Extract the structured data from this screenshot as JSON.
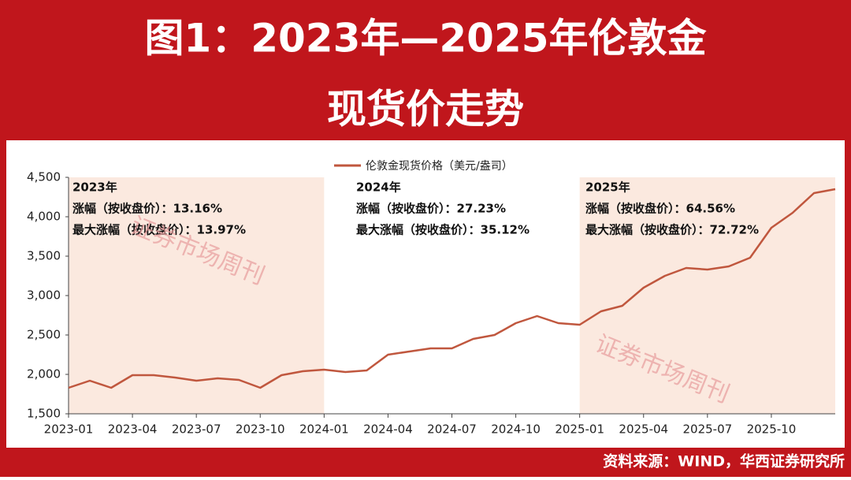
{
  "chart_data": {
    "type": "line",
    "title": [
      "图1：2023年—2025年伦敦金",
      "现货价走势"
    ],
    "x": [
      "2023-01",
      "2023-02",
      "2023-03",
      "2023-04",
      "2023-05",
      "2023-06",
      "2023-07",
      "2023-08",
      "2023-09",
      "2023-10",
      "2023-11",
      "2023-12",
      "2024-01",
      "2024-02",
      "2024-03",
      "2024-04",
      "2024-05",
      "2024-06",
      "2024-07",
      "2024-08",
      "2024-09",
      "2024-10",
      "2024-11",
      "2024-12",
      "2025-01",
      "2025-02",
      "2025-03",
      "2025-04",
      "2025-05",
      "2025-06",
      "2025-07",
      "2025-08",
      "2025-09",
      "2025-10",
      "2025-11",
      "2025-12",
      "2026-01"
    ],
    "series": [
      {
        "name": "伦敦金现货价格（美元/盎司）",
        "color": "#c0573e",
        "values": [
          1830,
          1920,
          1830,
          1990,
          1990,
          1960,
          1920,
          1950,
          1930,
          1830,
          1990,
          2040,
          2060,
          2030,
          2050,
          2250,
          2290,
          2330,
          2330,
          2450,
          2500,
          2650,
          2740,
          2650,
          2630,
          2800,
          2870,
          3100,
          3250,
          3350,
          3330,
          3370,
          3480,
          3860,
          4050,
          4300,
          4350
        ]
      }
    ],
    "xlim": [
      "2023-01",
      "2026-01"
    ],
    "xticks": [
      "2023-01",
      "2023-04",
      "2023-07",
      "2023-10",
      "2024-01",
      "2024-04",
      "2024-07",
      "2024-10",
      "2025-01",
      "2025-04",
      "2025-07",
      "2025-10"
    ],
    "ylim": [
      1500,
      4500
    ],
    "yticks": [
      {
        "value": 1500,
        "label": "1,500"
      },
      {
        "value": 2000,
        "label": "2,000"
      },
      {
        "value": 2500,
        "label": "2,500"
      },
      {
        "value": 3000,
        "label": "3,000"
      },
      {
        "value": 3500,
        "label": "3,500"
      },
      {
        "value": 4000,
        "label": "4,000"
      },
      {
        "value": 4500,
        "label": "4,500"
      }
    ],
    "shaded_spans": [
      [
        "2023-01",
        "2024-01"
      ],
      [
        "2025-01",
        "2026-01"
      ]
    ],
    "shade_color": "#fbe9df",
    "annotations": [
      [
        "2023年",
        "涨幅（按收盘价）：13.16%",
        "最大涨幅（按收盘价）：13.97%"
      ],
      [
        "2024年",
        "涨幅（按收盘价）：27.23%",
        "最大涨幅（按收盘价）：35.12%"
      ],
      [
        "2025年",
        "涨幅（按收盘价）：64.56%",
        "最大涨幅（按收盘价）：72.72%"
      ]
    ],
    "watermarks": [
      "证券市场周刊",
      "证券市场周刊"
    ],
    "source": "资料来源：WIND，华西证券研究所"
  }
}
